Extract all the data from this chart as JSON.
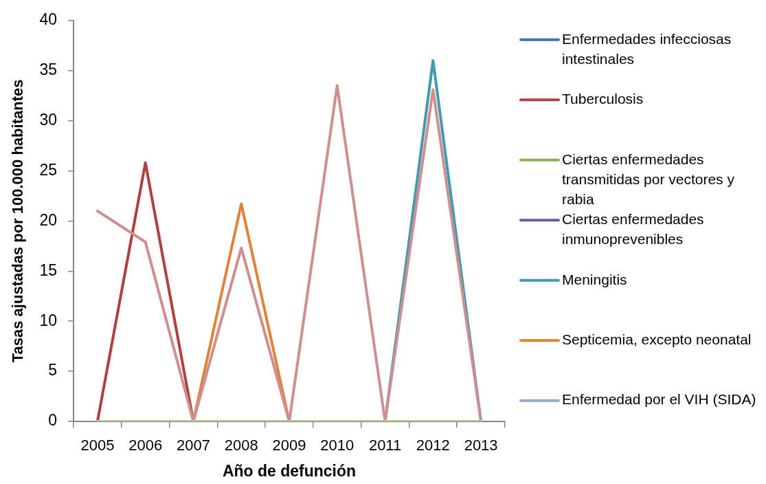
{
  "chart_data": {
    "type": "line",
    "xlabel": "Año de defunción",
    "ylabel": "Tasas ajustadas por 100.000 habitantes",
    "categories": [
      "2005",
      "2006",
      "2007",
      "2008",
      "2009",
      "2010",
      "2011",
      "2012",
      "2013"
    ],
    "series": [
      {
        "name": "Enfermedades infecciosas intestinales",
        "color": "#4272b4",
        "values": [
          null,
          null,
          null,
          null,
          null,
          null,
          null,
          null,
          null
        ]
      },
      {
        "name": "Tuberculosis",
        "color": "#b03f3e",
        "values": [
          0,
          25.8,
          0,
          null,
          null,
          null,
          null,
          null,
          null
        ]
      },
      {
        "name": "Ciertas enfermedades transmitidas por vectores y rabia",
        "color": "#8eb152",
        "values": [
          null,
          null,
          null,
          null,
          null,
          null,
          null,
          null,
          null
        ]
      },
      {
        "name": "Ciertas enfermedades inmunoprevenibles",
        "color": "#72599a",
        "values": [
          null,
          null,
          null,
          null,
          null,
          null,
          null,
          null,
          null
        ]
      },
      {
        "name": "Meningitis",
        "color": "#3f9bb2",
        "values": [
          null,
          null,
          null,
          null,
          null,
          null,
          0,
          36.0,
          0
        ]
      },
      {
        "name": "Septicemia, excepto neonatal",
        "color": "#e08337",
        "values": [
          null,
          null,
          0,
          21.7,
          0,
          null,
          null,
          null,
          null
        ]
      },
      {
        "name": "Enfermedad por el VIH (SIDA)",
        "color": "#8eaad2",
        "values": [
          null,
          null,
          null,
          null,
          null,
          null,
          null,
          null,
          null
        ]
      },
      {
        "color": "#d08e8e",
        "values": [
          21.0,
          17.9,
          0,
          17.3,
          0,
          33.5,
          0,
          33.1,
          0
        ]
      },
      {
        "color": "#b6cd90",
        "values": [
          0,
          0,
          0,
          0,
          0,
          0,
          0,
          0,
          0
        ]
      }
    ],
    "ylim": [
      0,
      40
    ],
    "yticks": [
      0,
      5,
      10,
      15,
      20,
      25,
      30,
      35,
      40
    ],
    "grid": false,
    "legend": "right"
  }
}
